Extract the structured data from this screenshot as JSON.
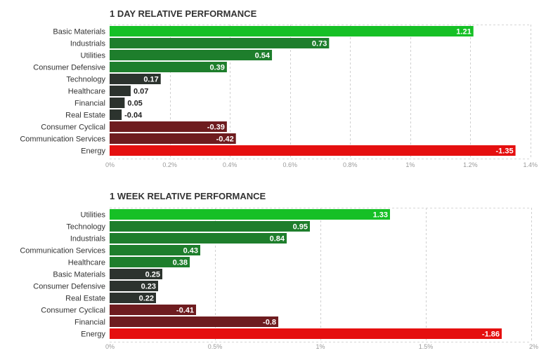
{
  "colors": {
    "positive_strong": "#16c026",
    "positive_mid": "#1e7e2c",
    "neutral_dark": "#2c332e",
    "negative_mid": "#6e1c1f",
    "negative_strong": "#e50f0f"
  },
  "chart_data": [
    {
      "type": "bar",
      "orientation": "horizontal",
      "title": "1 DAY RELATIVE PERFORMANCE",
      "categories": [
        "Basic Materials",
        "Industrials",
        "Utilities",
        "Consumer Defensive",
        "Technology",
        "Healthcare",
        "Financial",
        "Real Estate",
        "Consumer Cyclical",
        "Communication Services",
        "Energy"
      ],
      "values": [
        1.21,
        0.73,
        0.54,
        0.39,
        0.17,
        0.07,
        0.05,
        -0.04,
        -0.39,
        -0.42,
        -1.35
      ],
      "value_labels": [
        "1.21",
        "0.73",
        "0.54",
        "0.39",
        "0.17",
        "0.07",
        "0.05",
        "-0.04",
        "-0.39",
        "-0.42",
        "-1.35"
      ],
      "xlim": [
        0,
        1.4
      ],
      "ticks": [
        0,
        0.2,
        0.4,
        0.6,
        0.8,
        1,
        1.2,
        1.4
      ],
      "tick_labels": [
        "0%",
        "0.2%",
        "0.4%",
        "0.6%",
        "0.8%",
        "1%",
        "1.2%",
        "1.4%"
      ],
      "bar_length": "absolute value",
      "grid": true
    },
    {
      "type": "bar",
      "orientation": "horizontal",
      "title": "1 WEEK RELATIVE PERFORMANCE",
      "categories": [
        "Utilities",
        "Technology",
        "Industrials",
        "Communication Services",
        "Healthcare",
        "Basic Materials",
        "Consumer Defensive",
        "Real Estate",
        "Consumer Cyclical",
        "Financial",
        "Energy"
      ],
      "values": [
        1.33,
        0.95,
        0.84,
        0.43,
        0.38,
        0.25,
        0.23,
        0.22,
        -0.41,
        -0.8,
        -1.86
      ],
      "value_labels": [
        "1.33",
        "0.95",
        "0.84",
        "0.43",
        "0.38",
        "0.25",
        "0.23",
        "0.22",
        "-0.41",
        "-0.8",
        "-1.86"
      ],
      "xlim": [
        0,
        2
      ],
      "ticks": [
        0,
        0.5,
        1,
        1.5,
        2
      ],
      "tick_labels": [
        "0%",
        "0.5%",
        "1%",
        "1.5%",
        "2%"
      ],
      "bar_length": "absolute value",
      "grid": true
    }
  ]
}
